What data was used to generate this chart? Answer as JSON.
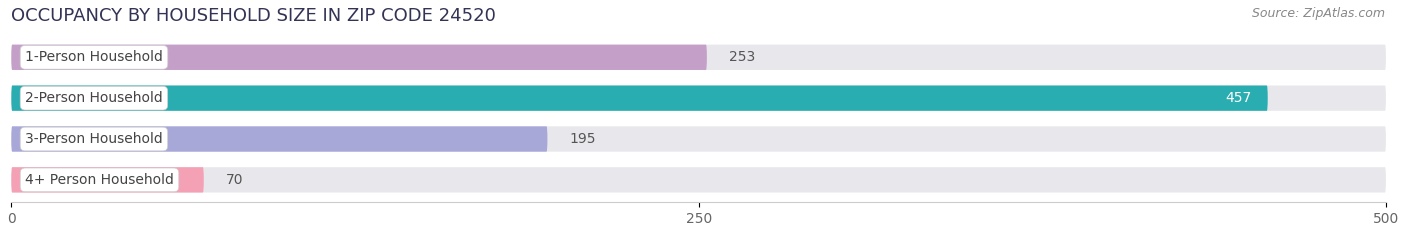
{
  "title": "OCCUPANCY BY HOUSEHOLD SIZE IN ZIP CODE 24520",
  "source": "Source: ZipAtlas.com",
  "categories": [
    "1-Person Household",
    "2-Person Household",
    "3-Person Household",
    "4+ Person Household"
  ],
  "values": [
    253,
    457,
    195,
    70
  ],
  "bar_colors": [
    "#c4a0c8",
    "#29adb0",
    "#a8a8d8",
    "#f4a0b5"
  ],
  "bar_bg_color": "#e8e8ec",
  "xlim": [
    -10,
    510
  ],
  "data_xlim": [
    0,
    500
  ],
  "xticks": [
    0,
    250,
    500
  ],
  "title_fontsize": 13,
  "source_fontsize": 9,
  "label_fontsize": 10,
  "value_fontsize": 10,
  "background_color": "#ffffff",
  "bar_height": 0.62,
  "bar_gap": 0.38
}
